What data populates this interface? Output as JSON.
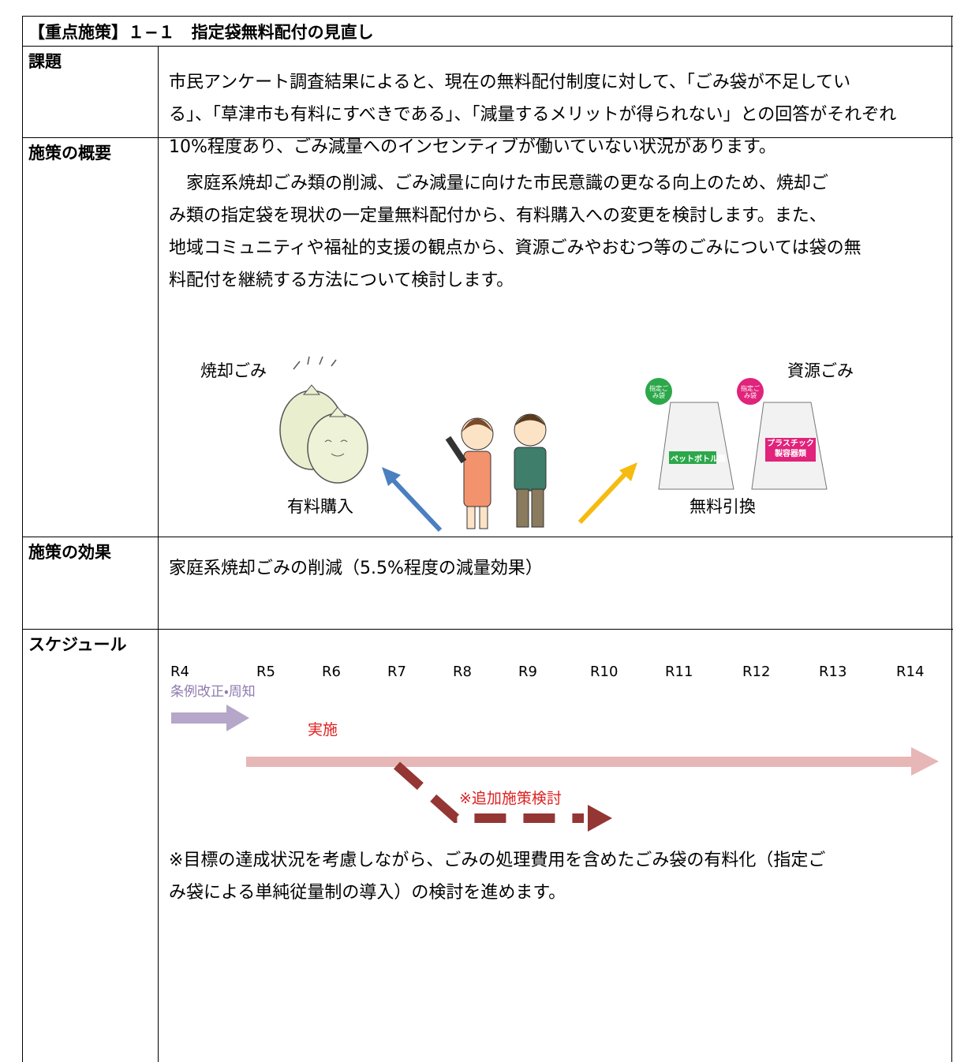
{
  "header": {
    "title": "【重点施策】１−１　指定袋無料配付の見直し"
  },
  "rows": [
    {
      "label": "課題",
      "lines": [
        "市民アンケート調査結果によると、現在の無料配付制度に対して、「ごみ袋が不足してい",
        "る」、「草津市も有料にすべきである」、「減量するメリットが得られない」との回答がそれぞれ",
        "10%程度あり、ごみ減量へのインセンティブが働いていない状況があります。"
      ]
    },
    {
      "label": "施策の概要",
      "lines": [
        "　家庭系焼却ごみ類の削減、ごみ減量に向けた市民意識の更なる向上のため、焼却ご",
        "み類の指定袋を現状の一定量無料配付から、有料購入への変更を検討します。また、",
        "地域コミュニティや福祉的支援の観点から、資源ごみやおむつ等のごみについては袋の無",
        "料配付を継続する方法について検討します。"
      ]
    },
    {
      "label": "施策の効果",
      "lines": [
        "家庭系焼却ごみの削減（5.5%程度の減量効果）"
      ]
    },
    {
      "label": "スケジュール",
      "lines": [
        "※目標の達成状況を考慮しながら、ごみの処理費用を含めたごみ袋の有料化（指定ご",
        "み袋による単純従量制の導入）の検討を進めます。"
      ]
    }
  ],
  "illustration": {
    "left_label": "焼却ごみ",
    "right_label": "資源ごみ",
    "left_caption": "有料購入",
    "right_caption": "無料引換",
    "bag_tag": "指定ごみ袋",
    "bag1": "ペットボトル類",
    "bag2": "プラスチック製容器類"
  },
  "schedule": {
    "years": [
      "R4",
      "R5",
      "R6",
      "R7",
      "R8",
      "R9",
      "R10",
      "R11",
      "R12",
      "R13",
      "R14"
    ],
    "phase1": "条例改正・周知",
    "phase2": "実施",
    "phase3": "※追加施策検討"
  }
}
